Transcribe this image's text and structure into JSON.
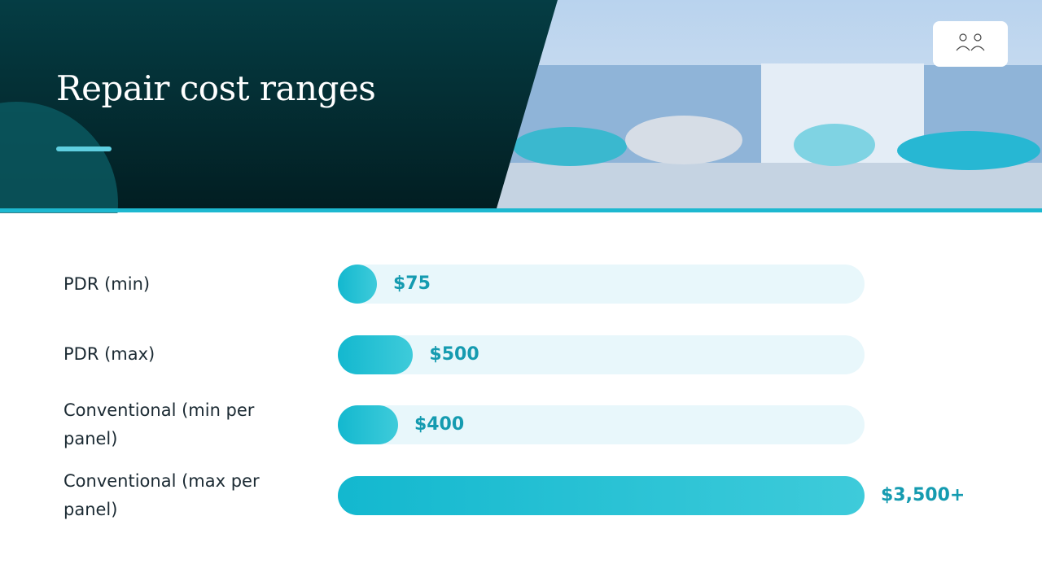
{
  "chart_data": {
    "type": "bar",
    "orientation": "horizontal",
    "title": "Repair cost ranges",
    "categories": [
      "PDR (min)",
      "PDR (max)",
      "Conventional (min per panel)",
      "Conventional (max per panel)"
    ],
    "values": [
      75,
      500,
      400,
      3500
    ],
    "value_labels": [
      "$75",
      "$500",
      "$400",
      "$3,500+"
    ],
    "color": "#13b8cf"
  }
}
